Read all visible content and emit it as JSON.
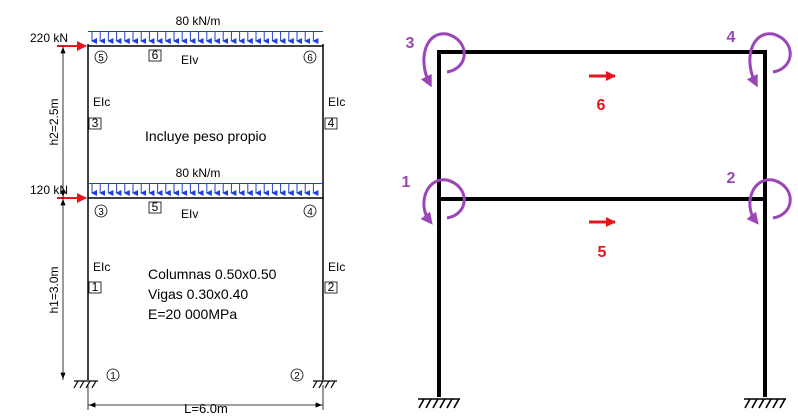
{
  "left_frame": {
    "load_top": "80 kN/m",
    "load_mid": "80 kN/m",
    "force_top": "220 kN",
    "force_mid": "120 kN",
    "h2_label": "h2=2.5m",
    "h1_label": "h1=3.0m",
    "span_label": "L=6.0m",
    "elc": "EIc",
    "elv": "EIv",
    "includes_self_weight": "Incluye peso propio",
    "columns": "Columnas 0.50x0.50",
    "beams": "Vigas 0.30x0.40",
    "modulus": "E=20 000MPa",
    "nodes": [
      "1",
      "2",
      "3",
      "4",
      "5",
      "6"
    ],
    "elements": [
      "1",
      "2",
      "3",
      "4",
      "5",
      "6"
    ],
    "load_color": "#1e3fd6",
    "force_color": "#e8141b"
  },
  "right_frame": {
    "dof_labels": [
      "1",
      "2",
      "3",
      "4",
      "5",
      "6"
    ],
    "rotation_color": "#9b46b8",
    "translation_color": "#e8141b",
    "frame_color": "#000000"
  }
}
